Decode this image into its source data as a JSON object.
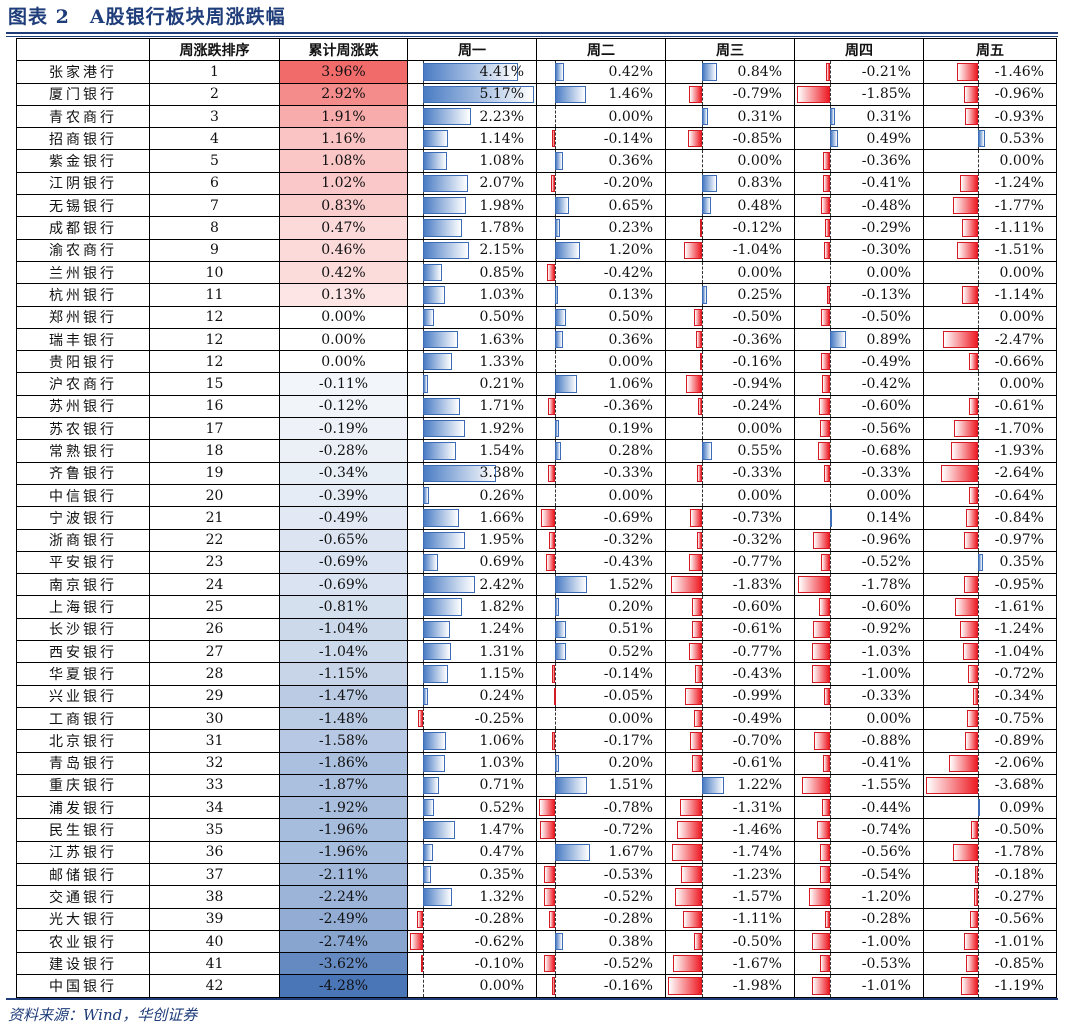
{
  "title": "图表 2　A股银行板块周涨跌幅",
  "footer": "资料来源：Wind，华创证券",
  "chart_data": {
    "type": "table",
    "columns": [
      "",
      "周涨跌排序",
      "累计周涨跌",
      "周一",
      "周二",
      "周三",
      "周四",
      "周五"
    ],
    "colors": {
      "positive": "#4a7cc4",
      "negative": "#ee1c25",
      "cum_pos": "#f26b6b",
      "cum_neg": "#4a76b8",
      "header": "#1f3d7a"
    },
    "rows": [
      {
        "name": "张家港行",
        "rank": 1,
        "cum": 3.96,
        "days": [
          4.41,
          0.42,
          0.84,
          -0.21,
          -1.46
        ]
      },
      {
        "name": "厦门银行",
        "rank": 2,
        "cum": 2.92,
        "days": [
          5.17,
          1.46,
          -0.79,
          -1.85,
          -0.96
        ]
      },
      {
        "name": "青农商行",
        "rank": 3,
        "cum": 1.91,
        "days": [
          2.23,
          0.0,
          0.31,
          0.31,
          -0.93
        ]
      },
      {
        "name": "招商银行",
        "rank": 4,
        "cum": 1.16,
        "days": [
          1.14,
          -0.14,
          -0.85,
          0.49,
          0.53
        ]
      },
      {
        "name": "紫金银行",
        "rank": 5,
        "cum": 1.08,
        "days": [
          1.08,
          0.36,
          0.0,
          -0.36,
          0.0
        ]
      },
      {
        "name": "江阴银行",
        "rank": 6,
        "cum": 1.02,
        "days": [
          2.07,
          -0.2,
          0.83,
          -0.41,
          -1.24
        ]
      },
      {
        "name": "无锡银行",
        "rank": 7,
        "cum": 0.83,
        "days": [
          1.98,
          0.65,
          0.48,
          -0.48,
          -1.77
        ]
      },
      {
        "name": "成都银行",
        "rank": 8,
        "cum": 0.47,
        "days": [
          1.78,
          0.23,
          -0.12,
          -0.29,
          -1.11
        ]
      },
      {
        "name": "渝农商行",
        "rank": 9,
        "cum": 0.46,
        "days": [
          2.15,
          1.2,
          -1.04,
          -0.3,
          -1.51
        ]
      },
      {
        "name": "兰州银行",
        "rank": 10,
        "cum": 0.42,
        "days": [
          0.85,
          -0.42,
          0.0,
          0.0,
          0.0
        ]
      },
      {
        "name": "杭州银行",
        "rank": 11,
        "cum": 0.13,
        "days": [
          1.03,
          0.13,
          0.25,
          -0.13,
          -1.14
        ]
      },
      {
        "name": "郑州银行",
        "rank": 12,
        "cum": 0.0,
        "days": [
          0.5,
          0.5,
          -0.5,
          -0.5,
          0.0
        ]
      },
      {
        "name": "瑞丰银行",
        "rank": 12,
        "cum": 0.0,
        "days": [
          1.63,
          0.36,
          -0.36,
          0.89,
          -2.47
        ]
      },
      {
        "name": "贵阳银行",
        "rank": 12,
        "cum": 0.0,
        "days": [
          1.33,
          0.0,
          -0.16,
          -0.49,
          -0.66
        ]
      },
      {
        "name": "沪农商行",
        "rank": 15,
        "cum": -0.11,
        "days": [
          0.21,
          1.06,
          -0.94,
          -0.42,
          0.0
        ]
      },
      {
        "name": "苏州银行",
        "rank": 16,
        "cum": -0.12,
        "days": [
          1.71,
          -0.36,
          -0.24,
          -0.6,
          -0.61
        ]
      },
      {
        "name": "苏农银行",
        "rank": 17,
        "cum": -0.19,
        "days": [
          1.92,
          0.19,
          0.0,
          -0.56,
          -1.7
        ]
      },
      {
        "name": "常熟银行",
        "rank": 18,
        "cum": -0.28,
        "days": [
          1.54,
          0.28,
          0.55,
          -0.68,
          -1.93
        ]
      },
      {
        "name": "齐鲁银行",
        "rank": 19,
        "cum": -0.34,
        "days": [
          3.38,
          -0.33,
          -0.33,
          -0.33,
          -2.64
        ]
      },
      {
        "name": "中信银行",
        "rank": 20,
        "cum": -0.39,
        "days": [
          0.26,
          0.0,
          0.0,
          0.0,
          -0.64
        ]
      },
      {
        "name": "宁波银行",
        "rank": 21,
        "cum": -0.49,
        "days": [
          1.66,
          -0.69,
          -0.73,
          0.14,
          -0.84
        ]
      },
      {
        "name": "浙商银行",
        "rank": 22,
        "cum": -0.65,
        "days": [
          1.95,
          -0.32,
          -0.32,
          -0.96,
          -0.97
        ]
      },
      {
        "name": "平安银行",
        "rank": 23,
        "cum": -0.69,
        "days": [
          0.69,
          -0.43,
          -0.77,
          -0.52,
          0.35
        ]
      },
      {
        "name": "南京银行",
        "rank": 24,
        "cum": -0.69,
        "days": [
          2.42,
          1.52,
          -1.83,
          -1.78,
          -0.95
        ]
      },
      {
        "name": "上海银行",
        "rank": 25,
        "cum": -0.81,
        "days": [
          1.82,
          0.2,
          -0.6,
          -0.6,
          -1.61
        ]
      },
      {
        "name": "长沙银行",
        "rank": 26,
        "cum": -1.04,
        "days": [
          1.24,
          0.51,
          -0.61,
          -0.92,
          -1.24
        ]
      },
      {
        "name": "西安银行",
        "rank": 27,
        "cum": -1.04,
        "days": [
          1.31,
          0.52,
          -0.77,
          -1.03,
          -1.04
        ]
      },
      {
        "name": "华夏银行",
        "rank": 28,
        "cum": -1.15,
        "days": [
          1.15,
          -0.14,
          -0.43,
          -1.0,
          -0.72
        ]
      },
      {
        "name": "兴业银行",
        "rank": 29,
        "cum": -1.47,
        "days": [
          0.24,
          -0.05,
          -0.99,
          -0.33,
          -0.34
        ]
      },
      {
        "name": "工商银行",
        "rank": 30,
        "cum": -1.48,
        "days": [
          -0.25,
          0.0,
          -0.49,
          0.0,
          -0.75
        ]
      },
      {
        "name": "北京银行",
        "rank": 31,
        "cum": -1.58,
        "days": [
          1.06,
          -0.17,
          -0.7,
          -0.88,
          -0.89
        ]
      },
      {
        "name": "青岛银行",
        "rank": 32,
        "cum": -1.86,
        "days": [
          1.03,
          0.2,
          -0.61,
          -0.41,
          -2.06
        ]
      },
      {
        "name": "重庆银行",
        "rank": 33,
        "cum": -1.87,
        "days": [
          0.71,
          1.51,
          1.22,
          -1.55,
          -3.68
        ]
      },
      {
        "name": "浦发银行",
        "rank": 34,
        "cum": -1.92,
        "days": [
          0.52,
          -0.78,
          -1.31,
          -0.44,
          0.09
        ]
      },
      {
        "name": "民生银行",
        "rank": 35,
        "cum": -1.96,
        "days": [
          1.47,
          -0.72,
          -1.46,
          -0.74,
          -0.5
        ]
      },
      {
        "name": "江苏银行",
        "rank": 36,
        "cum": -1.96,
        "days": [
          0.47,
          1.67,
          -1.74,
          -0.56,
          -1.78
        ]
      },
      {
        "name": "邮储银行",
        "rank": 37,
        "cum": -2.11,
        "days": [
          0.35,
          -0.53,
          -1.23,
          -0.54,
          -0.18
        ]
      },
      {
        "name": "交通银行",
        "rank": 38,
        "cum": -2.24,
        "days": [
          1.32,
          -0.52,
          -1.57,
          -1.2,
          -0.27
        ]
      },
      {
        "name": "光大银行",
        "rank": 39,
        "cum": -2.49,
        "days": [
          -0.28,
          -0.28,
          -1.11,
          -0.28,
          -0.56
        ]
      },
      {
        "name": "农业银行",
        "rank": 40,
        "cum": -2.74,
        "days": [
          -0.62,
          0.38,
          -0.5,
          -1.0,
          -1.01
        ]
      },
      {
        "name": "建设银行",
        "rank": 41,
        "cum": -3.62,
        "days": [
          -0.1,
          -0.52,
          -1.67,
          -0.53,
          -0.85
        ]
      },
      {
        "name": "中国银行",
        "rank": 42,
        "cum": -4.28,
        "days": [
          0.0,
          -0.16,
          -1.98,
          -1.01,
          -1.19
        ]
      }
    ]
  }
}
